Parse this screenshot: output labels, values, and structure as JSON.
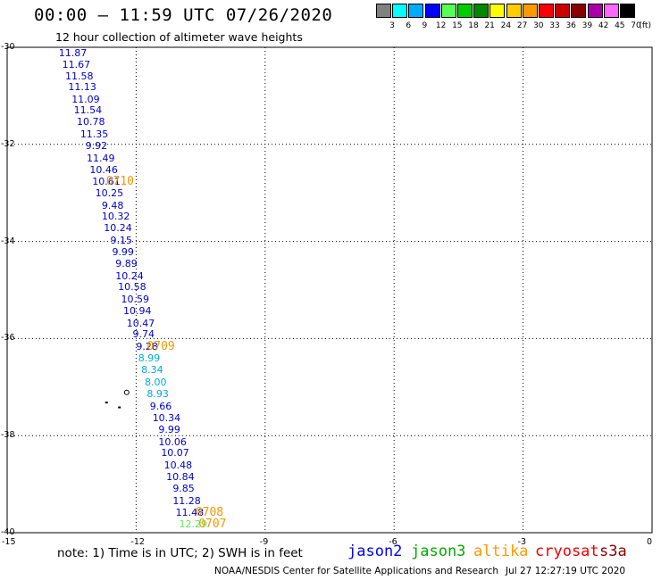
{
  "header": {
    "title": "00:00 – 11:59 UTC 07/26/2020",
    "subtitle": "12 hour collection of altimeter wave heights"
  },
  "legend": {
    "unit_label": "(ft)",
    "entries": [
      {
        "value": "3",
        "color": "#808080"
      },
      {
        "value": "6",
        "color": "#00ffff"
      },
      {
        "value": "9",
        "color": "#00aaff"
      },
      {
        "value": "12",
        "color": "#0000ff"
      },
      {
        "value": "15",
        "color": "#55ff55"
      },
      {
        "value": "18",
        "color": "#00cc00"
      },
      {
        "value": "21",
        "color": "#008800"
      },
      {
        "value": "24",
        "color": "#ffff00"
      },
      {
        "value": "27",
        "color": "#ffcc00"
      },
      {
        "value": "30",
        "color": "#ff9900"
      },
      {
        "value": "33",
        "color": "#ff0000"
      },
      {
        "value": "36",
        "color": "#cc0000"
      },
      {
        "value": "39",
        "color": "#880000"
      },
      {
        "value": "42",
        "color": "#aa00aa"
      },
      {
        "value": "45",
        "color": "#ff66ff"
      },
      {
        "value": "70",
        "color": "#000000"
      }
    ]
  },
  "axes": {
    "lon_ticks": [
      "-15",
      "-12",
      "-9",
      "-6",
      "-3",
      "0"
    ],
    "lat_ticks": [
      "-30",
      "-32",
      "-34",
      "-36",
      "-38",
      "-40"
    ],
    "lon_range": [
      -15,
      0
    ],
    "lat_range": [
      -40,
      -30
    ]
  },
  "observations": [
    {
      "text": "11.87",
      "color": "#0000cc",
      "lon": -13.8,
      "lat": -30.12
    },
    {
      "text": "11.67",
      "color": "#0000cc",
      "lon": -13.72,
      "lat": -30.37
    },
    {
      "text": "11.58",
      "color": "#0000cc",
      "lon": -13.65,
      "lat": -30.6
    },
    {
      "text": "11.13",
      "color": "#0000cc",
      "lon": -13.58,
      "lat": -30.83
    },
    {
      "text": "11.09",
      "color": "#0000cc",
      "lon": -13.5,
      "lat": -31.08
    },
    {
      "text": "11.54",
      "color": "#0000cc",
      "lon": -13.45,
      "lat": -31.31
    },
    {
      "text": "10.78",
      "color": "#0000cc",
      "lon": -13.38,
      "lat": -31.55
    },
    {
      "text": "11.35",
      "color": "#0000cc",
      "lon": -13.3,
      "lat": -31.8
    },
    {
      "text": "9.92",
      "color": "#0000cc",
      "lon": -13.18,
      "lat": -32.04
    },
    {
      "text": "11.49",
      "color": "#0000cc",
      "lon": -13.15,
      "lat": -32.29
    },
    {
      "text": "10.46",
      "color": "#0000cc",
      "lon": -13.08,
      "lat": -32.53
    },
    {
      "text": "10.61",
      "color": "#0000cc",
      "lon": -13.02,
      "lat": -32.78
    },
    {
      "text": "10.25",
      "color": "#0000cc",
      "lon": -12.95,
      "lat": -33.02
    },
    {
      "text": "9.48",
      "color": "#0000cc",
      "lon": -12.8,
      "lat": -33.27
    },
    {
      "text": "10.32",
      "color": "#0000cc",
      "lon": -12.8,
      "lat": -33.5
    },
    {
      "text": "10.24",
      "color": "#0000cc",
      "lon": -12.75,
      "lat": -33.74
    },
    {
      "text": "9.15",
      "color": "#0000cc",
      "lon": -12.6,
      "lat": -33.98
    },
    {
      "text": "9.99",
      "color": "#0000cc",
      "lon": -12.56,
      "lat": -34.23
    },
    {
      "text": "9.89",
      "color": "#0000cc",
      "lon": -12.48,
      "lat": -34.47
    },
    {
      "text": "10.24",
      "color": "#0000cc",
      "lon": -12.48,
      "lat": -34.72
    },
    {
      "text": "10.58",
      "color": "#0000cc",
      "lon": -12.42,
      "lat": -34.95
    },
    {
      "text": "10.59",
      "color": "#0000cc",
      "lon": -12.35,
      "lat": -35.2
    },
    {
      "text": "10.94",
      "color": "#0000cc",
      "lon": -12.3,
      "lat": -35.45
    },
    {
      "text": "10.47",
      "color": "#0000cc",
      "lon": -12.22,
      "lat": -35.69
    },
    {
      "text": "9.74",
      "color": "#0000cc",
      "lon": -12.08,
      "lat": -35.92
    },
    {
      "text": "9.28",
      "color": "#0000cc",
      "lon": -12.0,
      "lat": -36.18
    },
    {
      "text": "8.99",
      "color": "#00aadd",
      "lon": -11.95,
      "lat": -36.42
    },
    {
      "text": "8.34",
      "color": "#00aadd",
      "lon": -11.88,
      "lat": -36.66
    },
    {
      "text": "8.00",
      "color": "#00aadd",
      "lon": -11.8,
      "lat": -36.91
    },
    {
      "text": "8.93",
      "color": "#00aadd",
      "lon": -11.75,
      "lat": -37.15
    },
    {
      "text": "9.66",
      "color": "#0000cc",
      "lon": -11.68,
      "lat": -37.4
    },
    {
      "text": "10.34",
      "color": "#0000cc",
      "lon": -11.62,
      "lat": -37.64
    },
    {
      "text": "9.99",
      "color": "#0000cc",
      "lon": -11.48,
      "lat": -37.89
    },
    {
      "text": "10.06",
      "color": "#0000cc",
      "lon": -11.48,
      "lat": -38.14
    },
    {
      "text": "10.07",
      "color": "#0000cc",
      "lon": -11.42,
      "lat": -38.37
    },
    {
      "text": "10.48",
      "color": "#0000cc",
      "lon": -11.35,
      "lat": -38.62
    },
    {
      "text": "10.84",
      "color": "#0000cc",
      "lon": -11.3,
      "lat": -38.86
    },
    {
      "text": "9.85",
      "color": "#0000cc",
      "lon": -11.15,
      "lat": -39.1
    },
    {
      "text": "11.28",
      "color": "#0000cc",
      "lon": -11.15,
      "lat": -39.35
    },
    {
      "text": "11.48",
      "color": "#0000cc",
      "lon": -11.08,
      "lat": -39.6
    },
    {
      "text": "12.29",
      "color": "#55ee55",
      "lon": -11.0,
      "lat": -39.83
    }
  ],
  "time_tags": [
    {
      "text": "0710",
      "lon": -12.7,
      "lat": -32.78
    },
    {
      "text": "0709",
      "lon": -11.75,
      "lat": -36.18
    },
    {
      "text": "0708",
      "lon": -10.62,
      "lat": -39.6
    },
    {
      "text": "0707",
      "lon": -10.55,
      "lat": -39.83
    }
  ],
  "footer": {
    "note": "note:  1) Time is in UTC;  2) SWH is in feet",
    "satellites": [
      {
        "name": "jason2",
        "color": "#0000ff"
      },
      {
        "name": "jason3",
        "color": "#00aa00"
      },
      {
        "name": "altika",
        "color": "#ff9900"
      },
      {
        "name": "cryosat",
        "color": "#ee0000"
      },
      {
        "name": "s3a",
        "color": "#880000"
      }
    ],
    "credit": "NOAA/NESDIS Center for Satellite Applications and Research",
    "timestamp": "Jul 27 12:27:19 UTC 2020"
  }
}
